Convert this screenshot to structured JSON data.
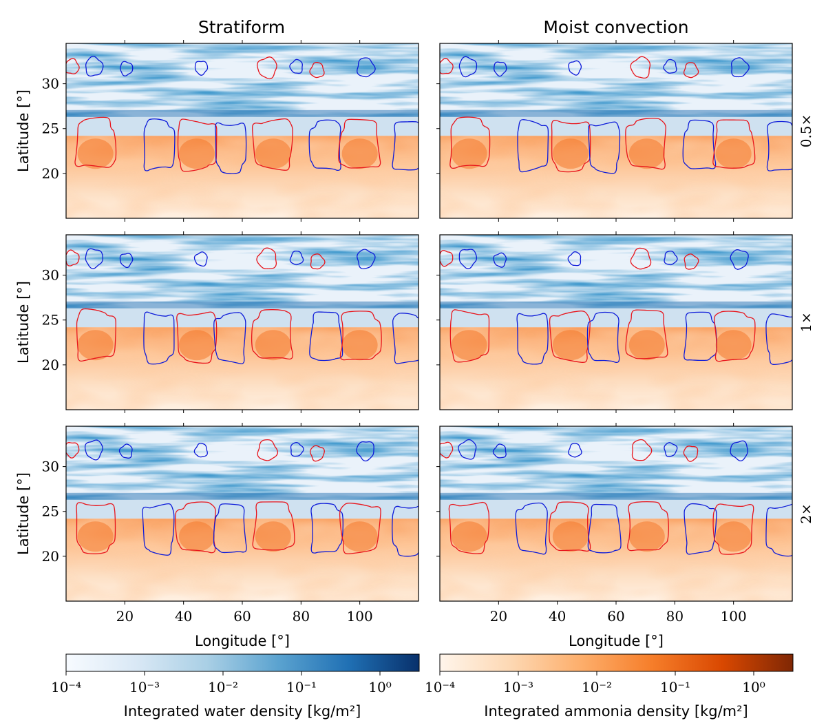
{
  "chart_data": {
    "type": "heatmap",
    "columns": [
      {
        "title": "Stratiform"
      },
      {
        "title": "Moist convection"
      }
    ],
    "rows": [
      {
        "label": "0.5×"
      },
      {
        "label": "1×"
      },
      {
        "label": "2×"
      }
    ],
    "x_axis": {
      "label": "Longitude [°]",
      "range": [
        0,
        120
      ],
      "ticks": [
        20,
        40,
        60,
        80,
        100
      ],
      "tick_labels": [
        "20",
        "40",
        "60",
        "80",
        "100"
      ]
    },
    "y_axis": {
      "label": "Latitude [°]",
      "range": [
        15,
        34.5
      ],
      "ticks": [
        20,
        25,
        30
      ],
      "tick_labels": [
        "20",
        "25",
        "30"
      ]
    },
    "water_colorbar": {
      "label": "Integrated water density [kg/m²]",
      "exponents": [
        -4,
        -3,
        -2,
        -1,
        0
      ],
      "tick_labels": [
        "10⁻⁴",
        "10⁻³",
        "10⁻²",
        "10⁻¹",
        "10⁰"
      ],
      "range_log10": [
        -4,
        0.5
      ]
    },
    "ammonia_colorbar": {
      "label": "Integrated ammonia density [kg/m²]",
      "exponents": [
        -4,
        -3,
        -2,
        -1,
        0
      ],
      "tick_labels": [
        "10⁻⁴",
        "10⁻³",
        "10⁻²",
        "10⁻¹",
        "10⁰"
      ],
      "range_log10": [
        -4,
        0.5
      ]
    },
    "vortices_upper_row": [
      {
        "lon": 2,
        "lat": 31.9,
        "sign": "cyclone"
      },
      {
        "lon": 9.5,
        "lat": 31.9,
        "sign": "anticyclone"
      },
      {
        "lon": 20.5,
        "lat": 31.7,
        "sign": "anticyclone"
      },
      {
        "lon": 46,
        "lat": 31.8,
        "sign": "anticyclone"
      },
      {
        "lon": 68.5,
        "lat": 31.8,
        "sign": "cyclone"
      },
      {
        "lon": 78.5,
        "lat": 31.9,
        "sign": "anticyclone"
      },
      {
        "lon": 85.5,
        "lat": 31.5,
        "sign": "cyclone"
      },
      {
        "lon": 102,
        "lat": 31.8,
        "sign": "anticyclone"
      }
    ],
    "vortices_lower_row": [
      {
        "lon": 10,
        "lat": 23.3,
        "sign": "cyclone"
      },
      {
        "lon": 31.5,
        "lat": 23.1,
        "sign": "anticyclone"
      },
      {
        "lon": 44.5,
        "lat": 23.2,
        "sign": "cyclone"
      },
      {
        "lon": 56,
        "lat": 23.0,
        "sign": "anticyclone"
      },
      {
        "lon": 70.5,
        "lat": 23.3,
        "sign": "cyclone"
      },
      {
        "lon": 88.5,
        "lat": 23.1,
        "sign": "anticyclone"
      },
      {
        "lon": 100,
        "lat": 23.2,
        "sign": "cyclone"
      },
      {
        "lon": 116.5,
        "lat": 23.0,
        "sign": "anticyclone"
      }
    ],
    "colors": {
      "cyclone": "#e8141b",
      "anticyclone": "#0c1ad9",
      "water_low": "#f7fbff",
      "water_high": "#08306b",
      "ammonia_low": "#fff5eb",
      "ammonia_high": "#7f2704"
    }
  }
}
